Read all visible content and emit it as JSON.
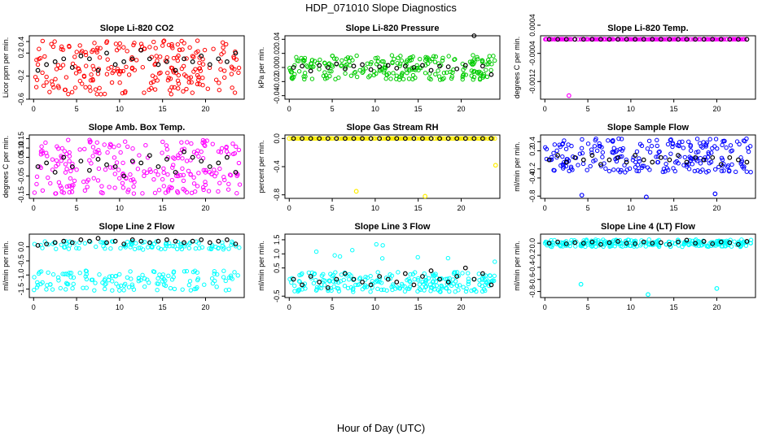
{
  "figure": {
    "title": "HDP_071010  Slope Diagnostics",
    "xlabel": "Hour of Day (UTC)"
  },
  "chart_data": [
    {
      "type": "scatter",
      "title": "Slope Li-820 CO2",
      "ylabel": "Licor ppm per min.",
      "xlim": [
        -0.5,
        24.5
      ],
      "ylim": [
        -0.6,
        0.5
      ],
      "xticks": [
        "0",
        "5",
        "10",
        "15",
        "20"
      ],
      "yticks": [
        "-0.6",
        "-0.2",
        "0.2",
        "0.4"
      ],
      "color": "#ff0000",
      "grid": false,
      "series": [
        {
          "x": [
            0.5,
            1.5,
            2.5,
            3.5,
            4.5,
            5.5,
            6.5,
            7.5,
            8.5,
            9.5,
            10.5,
            11.5,
            12.5,
            13.5,
            14.5,
            15.5,
            16.5,
            17.5,
            18.5,
            19.5,
            20.5,
            21.5,
            22.5,
            23.5
          ],
          "y": [
            -0.1,
            0.0,
            0.05,
            0.1,
            -0.05,
            0.15,
            0.1,
            -0.1,
            0.2,
            0.0,
            0.05,
            0.1,
            0.25,
            0.1,
            0.0,
            0.05,
            -0.1,
            0.1,
            0.05,
            0.15,
            0.0,
            0.1,
            0.05,
            0.2
          ]
        }
      ]
    },
    {
      "type": "scatter",
      "title": "Slope Li-820 Pressure",
      "ylabel": "kPa per min.",
      "xlim": [
        -0.5,
        24.5
      ],
      "ylim": [
        -0.045,
        0.045
      ],
      "xticks": [
        "0",
        "5",
        "10",
        "15",
        "20"
      ],
      "yticks": [
        "-0.04",
        "-0.02",
        "0.00",
        "0.02",
        "0.04"
      ],
      "color": "#00cc00",
      "grid": false,
      "series": [
        {
          "x": [
            0.5,
            1.5,
            2.5,
            3.5,
            4.5,
            5.5,
            6.5,
            7.5,
            8.5,
            9.5,
            10.5,
            11.5,
            12.5,
            13.5,
            14.5,
            15.5,
            16.5,
            17.5,
            18.5,
            19.5,
            20.5,
            21.5,
            22.5,
            23.5
          ],
          "y": [
            0.0,
            0.002,
            -0.005,
            0.003,
            0.0,
            0.005,
            -0.002,
            0.002,
            0.004,
            -0.003,
            0.001,
            0.003,
            -0.001,
            0.002,
            0.0,
            0.003,
            -0.004,
            0.002,
            0.001,
            -0.002,
            0.003,
            0.045,
            0.002,
            -0.01
          ]
        }
      ]
    },
    {
      "type": "scatter",
      "title": "Slope Li-820 Temp.",
      "ylabel": "degrees C per min.",
      "xlim": [
        -0.5,
        24.5
      ],
      "ylim": [
        -0.0017,
        0.0001
      ],
      "xticks": [
        "0",
        "5",
        "10",
        "15",
        "20"
      ],
      "yticks": [
        "-0.0012",
        "-0.0004",
        "0.0004"
      ],
      "color": "#ff00ff",
      "grid": false,
      "series": [
        {
          "x": [
            0.5,
            1.5,
            2.5,
            3.5,
            4.5,
            5.5,
            6.5,
            7.5,
            8.5,
            9.5,
            10.5,
            11.5,
            12.5,
            13.5,
            14.5,
            15.5,
            16.5,
            17.5,
            18.5,
            19.5,
            20.5,
            21.5,
            22.5,
            23.5
          ],
          "y": [
            0,
            0,
            0,
            0,
            0,
            0,
            0,
            0,
            0,
            0,
            0,
            0,
            0,
            0,
            0,
            0,
            0,
            0,
            0,
            0,
            0,
            0,
            0,
            0
          ]
        }
      ]
    },
    {
      "type": "scatter",
      "title": "Slope Amb. Box Temp.",
      "ylabel": "degrees C per min.",
      "xlim": [
        -0.5,
        24.5
      ],
      "ylim": [
        -0.17,
        0.17
      ],
      "xticks": [
        "0",
        "5",
        "10",
        "15",
        "20"
      ],
      "yticks": [
        "-0.15",
        "-0.05",
        "0.05",
        "0.10",
        "0.15"
      ],
      "color": "#ff00ff",
      "grid": false,
      "series": [
        {
          "x": [
            0.5,
            1.5,
            2.5,
            3.5,
            4.5,
            5.5,
            6.5,
            7.5,
            8.5,
            9.5,
            10.5,
            11.5,
            12.5,
            13.5,
            14.5,
            15.5,
            16.5,
            17.5,
            18.5,
            19.5,
            20.5,
            21.5,
            22.5,
            23.5
          ],
          "y": [
            0.0,
            0.02,
            -0.03,
            0.05,
            0.0,
            0.03,
            -0.02,
            0.04,
            0.01,
            0.0,
            -0.05,
            0.03,
            0.02,
            0.06,
            0.0,
            0.04,
            -0.03,
            0.08,
            0.05,
            0.03,
            0.0,
            0.02,
            0.05,
            -0.03
          ]
        }
      ]
    },
    {
      "type": "scatter",
      "title": "Slope Gas Stream RH",
      "ylabel": "percent per min.",
      "xlim": [
        -0.5,
        24.5
      ],
      "ylim": [
        -0.85,
        0.05
      ],
      "xticks": [
        "0",
        "5",
        "10",
        "15",
        "20"
      ],
      "yticks": [
        "-0.8",
        "-0.4",
        "0.0"
      ],
      "color": "#ffee00",
      "grid": false,
      "series": [
        {
          "x": [
            0.5,
            1.5,
            2.5,
            3.5,
            4.5,
            5.5,
            6.5,
            7.5,
            8.5,
            9.5,
            10.5,
            11.5,
            12.5,
            13.5,
            14.5,
            15.5,
            16.5,
            17.5,
            18.5,
            19.5,
            20.5,
            21.5,
            22.5,
            23.5
          ],
          "y": [
            0,
            0,
            0,
            0,
            0,
            0,
            0,
            0,
            0,
            0,
            0,
            0,
            0,
            0,
            0,
            0,
            0,
            0,
            0,
            0,
            0,
            0,
            0,
            0
          ]
        }
      ]
    },
    {
      "type": "scatter",
      "title": "Slope Sample Flow",
      "ylabel": "ml/min per min.",
      "xlim": [
        -0.5,
        24.5
      ],
      "ylim": [
        -0.85,
        0.55
      ],
      "xticks": [
        "0",
        "5",
        "10",
        "15",
        "20"
      ],
      "yticks": [
        "-0.8",
        "-0.4",
        "-0.2",
        "0.2",
        "0.4"
      ],
      "color": "#0000ff",
      "grid": false,
      "series": [
        {
          "x": [
            0.5,
            1.5,
            2.5,
            3.5,
            4.5,
            5.5,
            6.5,
            7.5,
            8.5,
            9.5,
            10.5,
            11.5,
            12.5,
            13.5,
            14.5,
            15.5,
            16.5,
            17.5,
            18.5,
            19.5,
            20.5,
            21.5,
            22.5,
            23.5
          ],
          "y": [
            0.0,
            0.1,
            -0.05,
            0.05,
            0.0,
            0.1,
            -0.1,
            0.0,
            0.05,
            -0.05,
            0.1,
            0.0,
            -0.05,
            0.05,
            0.0,
            0.1,
            -0.05,
            0.05,
            0.0,
            0.05,
            -0.1,
            0.05,
            0.0,
            -0.05
          ]
        }
      ]
    },
    {
      "type": "scatter",
      "title": "Slope Line 2 Flow",
      "ylabel": "ml/min per min.",
      "xlim": [
        -0.5,
        24.5
      ],
      "ylim": [
        -1.8,
        0.45
      ],
      "xticks": [
        "0",
        "5",
        "10",
        "15",
        "20"
      ],
      "yticks": [
        "-1.5",
        "-1.0",
        "-0.5",
        "0.0"
      ],
      "color": "#00ffff",
      "grid": false,
      "series": [
        {
          "x": [
            0.5,
            1.5,
            2.5,
            3.5,
            4.5,
            5.5,
            6.5,
            7.5,
            8.5,
            9.5,
            10.5,
            11.5,
            12.5,
            13.5,
            14.5,
            15.5,
            16.5,
            17.5,
            18.5,
            19.5,
            20.5,
            21.5,
            22.5,
            23.5
          ],
          "y": [
            0.05,
            0.1,
            0.15,
            0.2,
            0.15,
            0.25,
            0.2,
            0.3,
            0.15,
            0.2,
            0.1,
            0.25,
            0.2,
            0.15,
            0.2,
            0.25,
            0.2,
            0.15,
            0.2,
            0.25,
            0.15,
            0.2,
            0.25,
            0.1
          ]
        }
      ]
    },
    {
      "type": "scatter",
      "title": "Slope Line 3 Flow",
      "ylabel": "ml/min per min.",
      "xlim": [
        -0.5,
        24.5
      ],
      "ylim": [
        -0.55,
        1.7
      ],
      "xticks": [
        "0",
        "5",
        "10",
        "15",
        "20"
      ],
      "yticks": [
        "-0.5",
        "0.5",
        "1.0",
        "1.5"
      ],
      "color": "#00ffff",
      "grid": false,
      "series": [
        {
          "x": [
            0.5,
            1.5,
            2.5,
            3.5,
            4.5,
            5.5,
            6.5,
            7.5,
            8.5,
            9.5,
            10.5,
            11.5,
            12.5,
            13.5,
            14.5,
            15.5,
            16.5,
            17.5,
            18.5,
            19.5,
            20.5,
            21.5,
            22.5,
            23.5
          ],
          "y": [
            0.1,
            -0.1,
            0.2,
            0.0,
            -0.2,
            0.1,
            0.3,
            0.1,
            0.0,
            -0.1,
            0.2,
            0.1,
            0.0,
            0.3,
            -0.1,
            0.2,
            0.4,
            0.1,
            0.0,
            0.2,
            0.5,
            0.1,
            0.3,
            -0.1
          ]
        }
      ]
    },
    {
      "type": "scatter",
      "title": "Slope Line 4 (LT) Flow",
      "ylabel": "ml/min per min.",
      "xlim": [
        -0.5,
        24.5
      ],
      "ylim": [
        -0.9,
        0.15
      ],
      "xticks": [
        "0",
        "5",
        "10",
        "15",
        "20"
      ],
      "yticks": [
        "-0.8",
        "-0.6",
        "-0.4",
        "-0.2",
        "0.0"
      ],
      "color": "#00ffff",
      "grid": false,
      "series": [
        {
          "x": [
            0.5,
            1.5,
            2.5,
            3.5,
            4.5,
            5.5,
            6.5,
            7.5,
            8.5,
            9.5,
            10.5,
            11.5,
            12.5,
            13.5,
            14.5,
            15.5,
            16.5,
            17.5,
            18.5,
            19.5,
            20.5,
            21.5,
            22.5,
            23.5
          ],
          "y": [
            0.0,
            0.02,
            -0.01,
            0.01,
            0.0,
            0.02,
            -0.02,
            0.01,
            0.03,
            0.0,
            -0.01,
            0.02,
            0.0,
            0.01,
            -0.02,
            0.02,
            0.05,
            0.0,
            0.03,
            -0.01,
            0.02,
            0.01,
            -0.02,
            0.03
          ]
        }
      ]
    }
  ]
}
